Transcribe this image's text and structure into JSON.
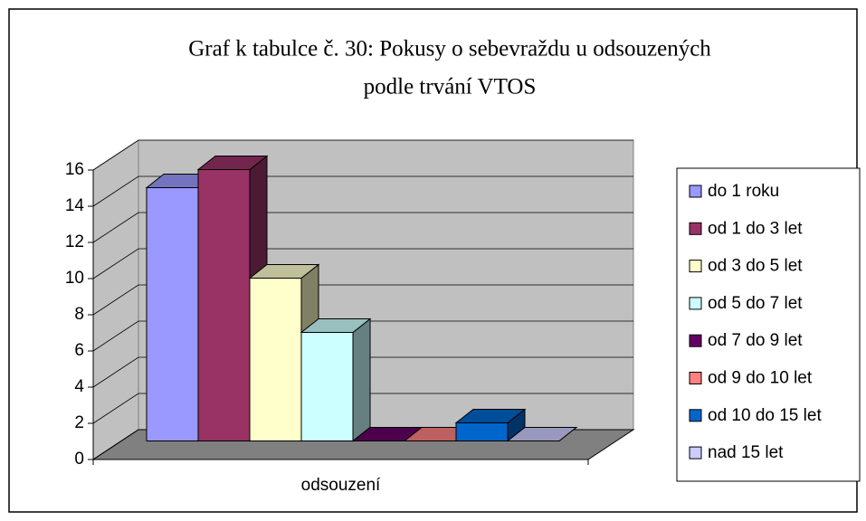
{
  "chart_data": {
    "type": "bar3d",
    "title": [
      "Graf k tabulce č. 30: Pokusy o sebevraždu u odsouzených",
      "podle trvání  VTOS"
    ],
    "categories": [
      "odsouzení"
    ],
    "series": [
      {
        "name": "do 1 roku",
        "color": "#9999ff",
        "values": [
          14
        ]
      },
      {
        "name": "od 1 do 3 let",
        "color": "#993366",
        "values": [
          15
        ]
      },
      {
        "name": "od 3 do 5 let",
        "color": "#ffffcc",
        "values": [
          9
        ]
      },
      {
        "name": "od 5 do 7 let",
        "color": "#ccffff",
        "values": [
          6
        ]
      },
      {
        "name": "od 7 do 9 let",
        "color": "#660066",
        "values": [
          0
        ]
      },
      {
        "name": "od 9 do 10 let",
        "color": "#ff8080",
        "values": [
          0
        ]
      },
      {
        "name": "od 10 do 15 let",
        "color": "#0066cc",
        "values": [
          1
        ]
      },
      {
        "name": "nad 15 let",
        "color": "#ccccff",
        "values": [
          0
        ]
      }
    ],
    "ylim": [
      0,
      16
    ],
    "yticks": [
      0,
      2,
      4,
      6,
      8,
      10,
      12,
      14,
      16
    ],
    "grid": true,
    "legend": "right"
  }
}
